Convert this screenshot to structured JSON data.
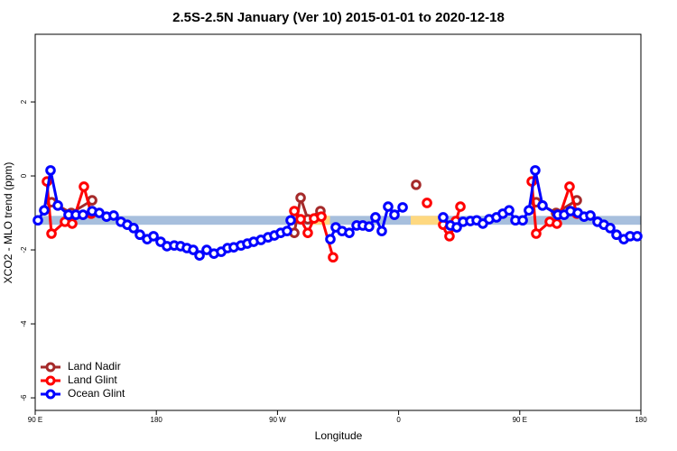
{
  "chart_data": {
    "type": "line",
    "title": "2.5S-2.5N January (Ver 10)   2015-01-01 to 2020-12-18",
    "x_label": "Longitude",
    "y_label": "XCO2 - MLO trend (ppm)",
    "xlim": [
      90,
      540
    ],
    "ylim": [
      -6.34,
      3.83
    ],
    "xticks": [
      {
        "value": 90,
        "label": "90 E"
      },
      180,
      {
        "value": 270,
        "label": "90 W"
      },
      {
        "value": 360,
        "label": "0"
      },
      {
        "value": 450,
        "label": "90 E"
      },
      {
        "value": 540,
        "label": "180"
      }
    ],
    "yticks": [
      -6,
      -4,
      -2,
      0,
      2
    ],
    "legend": "lower left",
    "band": {
      "low": -1.32,
      "high": -1.08,
      "color": "#a7bfdd",
      "highlight_color": "#fed880",
      "highlights": [
        [
          295,
          309
        ],
        [
          369,
          390
        ]
      ]
    },
    "series": [
      {
        "name": "Land Nadir",
        "color": "#a52a2a",
        "x": [
          102.1,
          116.8,
          132.3,
          200,
          282.5,
          287.2,
          292.5,
          301.9,
          340,
          373.0,
          420,
          462.2,
          477.0,
          492.4
        ],
        "values": [
          -0.71,
          -1.0,
          -0.66,
          null,
          -1.54,
          -0.59,
          -1.17,
          -0.95,
          null,
          -0.24,
          null,
          -0.71,
          -1.0,
          -0.66
        ]
      },
      {
        "name": "Land Glint",
        "color": "#ff0000",
        "x": [
          98.7,
          102.1,
          112.1,
          117.5,
          126.2,
          131.6,
          200,
          282.5,
          287.2,
          292.5,
          297.2,
          302.6,
          311.3,
          340,
          381.1,
          388,
          393.1,
          397.2,
          397.8,
          402.5,
          405.9,
          430,
          458.9,
          462.2,
          472.3,
          477.6,
          487.0,
          492.4
        ],
        "values": [
          -0.15,
          -1.56,
          -1.24,
          -1.29,
          -0.29,
          -1.02,
          null,
          -0.95,
          -1.17,
          -1.54,
          -1.15,
          -1.1,
          -2.2,
          null,
          -0.73,
          null,
          -1.32,
          -1.44,
          -1.63,
          -1.22,
          -0.83,
          null,
          -0.15,
          -1.56,
          -1.24,
          -1.29,
          -0.29,
          -1.02
        ]
      },
      {
        "name": "Ocean Glint",
        "color": "#0000ff",
        "x": [
          92.0,
          96.7,
          101.4,
          106.8,
          114.8,
          120.2,
          125.5,
          132.3,
          137.6,
          143.0,
          148.3,
          153.7,
          158.4,
          163.1,
          167.8,
          173.2,
          177.9,
          183.2,
          187.9,
          193.3,
          198.0,
          202.7,
          207.4,
          212.1,
          217.4,
          222.8,
          228.2,
          232.9,
          237.5,
          242.9,
          247.6,
          252.3,
          257.7,
          263.0,
          267.7,
          272.4,
          277.1,
          279.8,
          295,
          309.3,
          313.3,
          318.0,
          323.4,
          328.8,
          333.4,
          338.1,
          342.8,
          347.5,
          352.2,
          356.9,
          363.0,
          378,
          393.1,
          398.5,
          403.2,
          407.9,
          413.3,
          418.0,
          422.6,
          427.3,
          432.7,
          437.4,
          442.1,
          446.8,
          452.2,
          456.8,
          461.5,
          466.9,
          478.3,
          483.0,
          487.7,
          493.1,
          497.8,
          502.5,
          507.8,
          512.5,
          517.2,
          521.9,
          527.3,
          532.0,
          537.3
        ],
        "values": [
          -1.2,
          -0.93,
          0.15,
          -0.8,
          -1.05,
          -1.05,
          -1.05,
          -0.95,
          -1.0,
          -1.1,
          -1.07,
          -1.24,
          -1.32,
          -1.41,
          -1.59,
          -1.71,
          -1.63,
          -1.78,
          -1.9,
          -1.88,
          -1.9,
          -1.95,
          -2.0,
          -2.15,
          -2.0,
          -2.1,
          -2.05,
          -1.95,
          -1.93,
          -1.88,
          -1.83,
          -1.78,
          -1.73,
          -1.66,
          -1.61,
          -1.54,
          -1.49,
          -1.2,
          null,
          -1.71,
          -1.39,
          -1.49,
          -1.54,
          -1.34,
          -1.34,
          -1.37,
          -1.12,
          -1.49,
          -0.83,
          -1.05,
          -0.85,
          null,
          -1.12,
          -1.34,
          -1.39,
          -1.24,
          -1.22,
          -1.2,
          -1.29,
          -1.17,
          -1.12,
          -1.02,
          -0.93,
          -1.2,
          -1.2,
          -0.93,
          0.15,
          -0.8,
          -1.05,
          -1.05,
          -0.95,
          -1.0,
          -1.1,
          -1.07,
          -1.24,
          -1.32,
          -1.41,
          -1.59,
          -1.71,
          -1.63,
          -1.63
        ]
      }
    ]
  }
}
